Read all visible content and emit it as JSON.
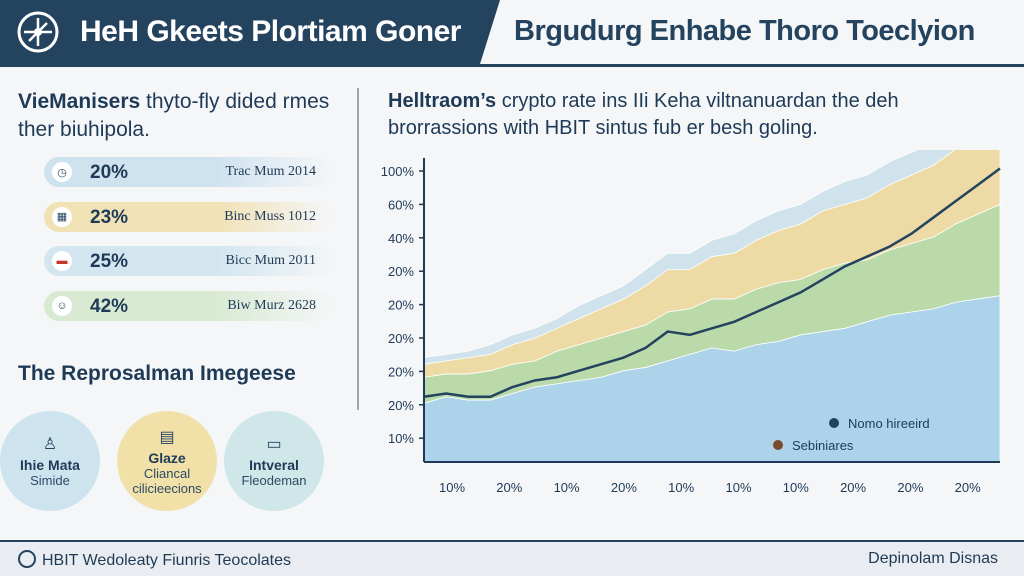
{
  "header": {
    "title_left": "HeH Gkeets Plortiam Goner",
    "title_right": "Brgudurg Enhabe Thoro Toeclyion",
    "logo_icon": "compass-icon",
    "dark_color": "#24435f"
  },
  "left_panel": {
    "intro_bold": "VieManisers",
    "intro_rest": " thyto-fly dided rmes ther biuhipola.",
    "stats": [
      {
        "value": "20%",
        "label": "Trac Mum 2014",
        "icon": "clock-icon",
        "color": "#cfe3ef"
      },
      {
        "value": "23%",
        "label": "Binc Muss 1012",
        "icon": "building-icon",
        "color": "#f1e2b6"
      },
      {
        "value": "25%",
        "label": "Bicc Mum 2011",
        "icon": "flag-icon",
        "color": "#d3e6f0"
      },
      {
        "value": "42%",
        "label": "Biw Murz 2628",
        "icon": "user-icon",
        "color": "#d9ead3"
      }
    ],
    "section_title": "The Reprosalman Imegeese",
    "circles": [
      {
        "title": "Ihie Mata",
        "subtitle": "Simide",
        "icon": "person-icon",
        "color": "#cde4ef"
      },
      {
        "title": "Glaze",
        "subtitle": "Cliancal cilicieecions",
        "icon": "document-icon",
        "color": "#f1e1a9"
      },
      {
        "title": "Intveral",
        "subtitle": "Fleodeman",
        "icon": "card-icon",
        "color": "#cfe7e8"
      }
    ]
  },
  "right_panel": {
    "intro_bold": "Helltraom’s",
    "intro_rest": " crypto rate ins IIi Keha viltnanuardan the deh brorrassions with HBIT sintus fub er besh goling."
  },
  "chart_data": {
    "type": "area",
    "y_tick_labels": [
      "100%",
      "60%",
      "40%",
      "20%",
      "20%",
      "20%",
      "20%",
      "20%",
      "10%"
    ],
    "x_tick_labels": [
      "10%",
      "20%",
      "10%",
      "20%",
      "10%",
      "10%",
      "10%",
      "20%",
      "20%",
      "20%"
    ],
    "grid": false,
    "series": [
      {
        "color": "#a9d2ea",
        "values": [
          18,
          20,
          19,
          19,
          21,
          23,
          24,
          25,
          26,
          28,
          29,
          31,
          33,
          35,
          34,
          36,
          37,
          39,
          40,
          41,
          43,
          45,
          46,
          47,
          49,
          50,
          51
        ]
      },
      {
        "color": "#b7d9a6",
        "values": [
          8,
          7,
          8,
          9,
          9,
          8,
          10,
          11,
          12,
          12,
          13,
          15,
          14,
          15,
          16,
          17,
          18,
          17,
          19,
          20,
          19,
          20,
          21,
          22,
          24,
          26,
          28
        ]
      },
      {
        "color": "#eed9a0",
        "values": [
          4,
          4,
          5,
          5,
          6,
          7,
          7,
          8,
          9,
          10,
          12,
          13,
          12,
          13,
          14,
          15,
          16,
          17,
          18,
          18,
          19,
          20,
          21,
          22,
          23,
          24,
          25
        ]
      },
      {
        "color": "#cfe1ec",
        "values": [
          2,
          2,
          2,
          3,
          3,
          3,
          3,
          4,
          4,
          4,
          5,
          5,
          5,
          5,
          6,
          6,
          6,
          6,
          6,
          7,
          7,
          7,
          7,
          7,
          7,
          7,
          6
        ]
      }
    ],
    "line": {
      "color": "#24435f",
      "values": [
        20,
        21,
        20,
        20,
        23,
        25,
        26,
        28,
        30,
        32,
        35,
        40,
        39,
        41,
        43,
        46,
        49,
        52,
        56,
        60,
        63,
        66,
        70,
        75,
        80,
        85,
        90
      ]
    },
    "ylim": [
      0,
      92
    ],
    "legend": [
      {
        "label": "Nomo hireeird",
        "color": "#24435f"
      },
      {
        "label": "Sebiniares",
        "color": "#7a4a2c"
      }
    ],
    "legend_position": "bottom-right"
  },
  "footer": {
    "left": "HBIT Wedoleaty Fiunris Teocolates",
    "right": "Depinolam Disnas"
  }
}
